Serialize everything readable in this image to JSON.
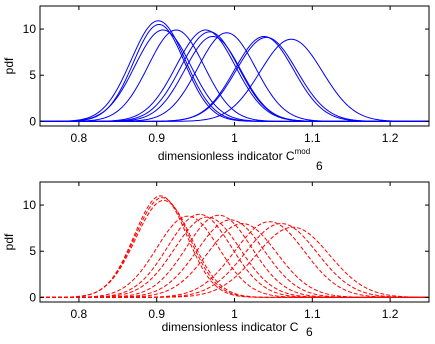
{
  "chart_data": [
    {
      "type": "line",
      "ylabel": "pdf",
      "xlabel_main": "dimensionless indicator C",
      "xlabel_sub": "6",
      "xlabel_sup": "mod",
      "xlim": [
        0.75,
        1.25
      ],
      "ylim": [
        -0.5,
        12.5
      ],
      "xticks": [
        0.8,
        0.9,
        1.0,
        1.1,
        1.2
      ],
      "xtick_labels": [
        "0.8",
        "0.9",
        "1",
        "1.1",
        "1.2"
      ],
      "yticks": [
        0,
        5,
        10
      ],
      "ytick_labels": [
        "0",
        "5",
        "10"
      ],
      "line_style": "solid",
      "color": "#0000ff",
      "grid": false,
      "series": [
        {
          "mu": 0.902,
          "sigma": 0.035,
          "peak": 10.9
        },
        {
          "mu": 0.903,
          "sigma": 0.033,
          "peak": 10.5
        },
        {
          "mu": 0.908,
          "sigma": 0.036,
          "peak": 9.9
        },
        {
          "mu": 0.925,
          "sigma": 0.036,
          "peak": 9.9
        },
        {
          "mu": 0.963,
          "sigma": 0.038,
          "peak": 9.9
        },
        {
          "mu": 0.968,
          "sigma": 0.037,
          "peak": 9.7
        },
        {
          "mu": 0.972,
          "sigma": 0.036,
          "peak": 9.2
        },
        {
          "mu": 0.99,
          "sigma": 0.037,
          "peak": 9.6
        },
        {
          "mu": 1.038,
          "sigma": 0.038,
          "peak": 9.2
        },
        {
          "mu": 1.041,
          "sigma": 0.039,
          "peak": 9.1
        },
        {
          "mu": 1.073,
          "sigma": 0.04,
          "peak": 8.9
        }
      ]
    },
    {
      "type": "line",
      "ylabel": "pdf",
      "xlabel_main": "dimensionless indicator C",
      "xlabel_sub": "6",
      "xlim": [
        0.75,
        1.25
      ],
      "ylim": [
        -0.5,
        12.5
      ],
      "xticks": [
        0.8,
        0.9,
        1.0,
        1.1,
        1.2
      ],
      "xtick_labels": [
        "0.8",
        "0.9",
        "1",
        "1.1",
        "1.2"
      ],
      "yticks": [
        0,
        5,
        10
      ],
      "ytick_labels": [
        "0",
        "5",
        "10"
      ],
      "line_style": "dashed",
      "color": "#ff0000",
      "grid": false,
      "series": [
        {
          "mu": 0.905,
          "sigma": 0.034,
          "peak": 11.0
        },
        {
          "mu": 0.907,
          "sigma": 0.035,
          "peak": 10.8
        },
        {
          "mu": 0.909,
          "sigma": 0.036,
          "peak": 10.5
        },
        {
          "mu": 0.94,
          "sigma": 0.04,
          "peak": 8.8
        },
        {
          "mu": 0.955,
          "sigma": 0.041,
          "peak": 9.0
        },
        {
          "mu": 0.965,
          "sigma": 0.042,
          "peak": 8.7
        },
        {
          "mu": 0.98,
          "sigma": 0.042,
          "peak": 8.9
        },
        {
          "mu": 0.995,
          "sigma": 0.043,
          "peak": 8.4
        },
        {
          "mu": 1.01,
          "sigma": 0.044,
          "peak": 8.0
        },
        {
          "mu": 1.045,
          "sigma": 0.045,
          "peak": 8.2
        },
        {
          "mu": 1.06,
          "sigma": 0.046,
          "peak": 8.0
        },
        {
          "mu": 1.075,
          "sigma": 0.047,
          "peak": 7.6
        }
      ]
    }
  ]
}
